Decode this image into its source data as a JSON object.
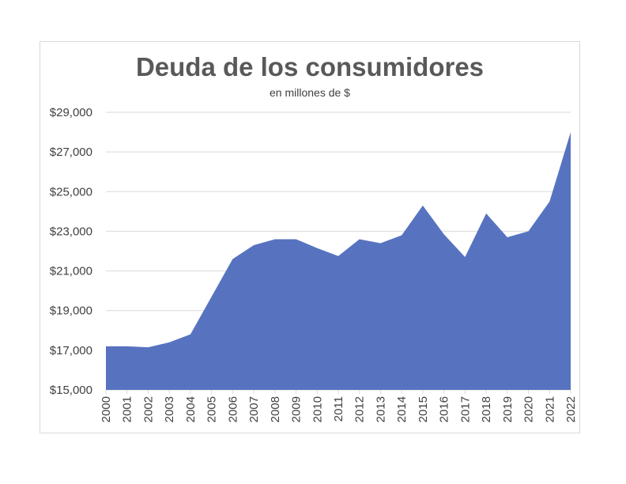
{
  "chart_data": {
    "type": "area",
    "title": "Deuda de los consumidores",
    "subtitle": "en millones de $",
    "xlabel": "",
    "ylabel": "",
    "x": [
      "2000",
      "2001",
      "2002",
      "2003",
      "2004",
      "2005",
      "2006",
      "2007",
      "2008",
      "2009",
      "2010",
      "2011",
      "2012",
      "2013",
      "2014",
      "2015",
      "2016",
      "2017",
      "2018",
      "2019",
      "2020",
      "2021",
      "2022"
    ],
    "values": [
      17200,
      17200,
      17150,
      17400,
      17800,
      19700,
      21600,
      22300,
      22600,
      22600,
      22150,
      21750,
      22600,
      22400,
      22800,
      24300,
      22850,
      21700,
      23900,
      22700,
      23000,
      24500,
      28000
    ],
    "ylim": [
      15000,
      29000
    ],
    "yticks": [
      15000,
      17000,
      19000,
      21000,
      23000,
      25000,
      27000,
      29000
    ],
    "ytick_labels": [
      "$15,000",
      "$17,000",
      "$19,000",
      "$21,000",
      "$23,000",
      "$25,000",
      "$27,000",
      "$29,000"
    ],
    "grid": true,
    "legend": "none",
    "color": "#5773c0"
  }
}
